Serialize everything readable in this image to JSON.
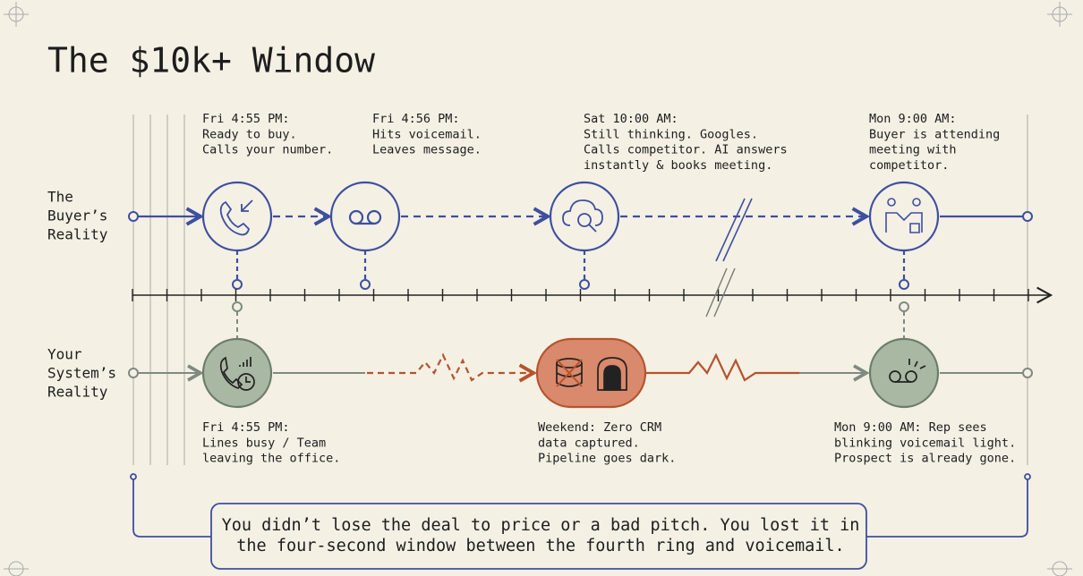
{
  "title": "The $10k+ Window",
  "rows": [
    {
      "label_lines": [
        "The",
        "Buyer’s",
        "Reality"
      ]
    },
    {
      "label_lines": [
        "Your",
        "System’s",
        "Reality"
      ]
    }
  ],
  "buyer_events": [
    {
      "lines": [
        "Fri 4:55 PM:",
        "Ready to buy.",
        "Calls your number."
      ]
    },
    {
      "lines": [
        "Fri 4:56 PM:",
        "Hits voicemail.",
        "Leaves message."
      ]
    },
    {
      "lines": [
        "Sat 10:00 AM:",
        "Still thinking. Googles.",
        "Calls competitor. AI answers",
        "instantly & books meeting."
      ]
    },
    {
      "lines": [
        "Mon 9:00 AM:",
        "Buyer is attending",
        "meeting with",
        "competitor."
      ]
    }
  ],
  "system_events": [
    {
      "lines": [
        "Fri 4:55 PM:",
        "Lines busy / Team",
        "leaving the office."
      ]
    },
    {
      "lines": [
        "Weekend: Zero CRM",
        "data captured.",
        "Pipeline goes dark."
      ]
    },
    {
      "lines": [
        "Mon 9:00 AM: Rep sees",
        "blinking voicemail light.",
        "Prospect is already gone."
      ]
    }
  ],
  "callout": {
    "lines": [
      "You didn’t lose the deal to price or a bad pitch. You lost it in",
      "the four-second window between the fourth ring and voicemail."
    ]
  }
}
